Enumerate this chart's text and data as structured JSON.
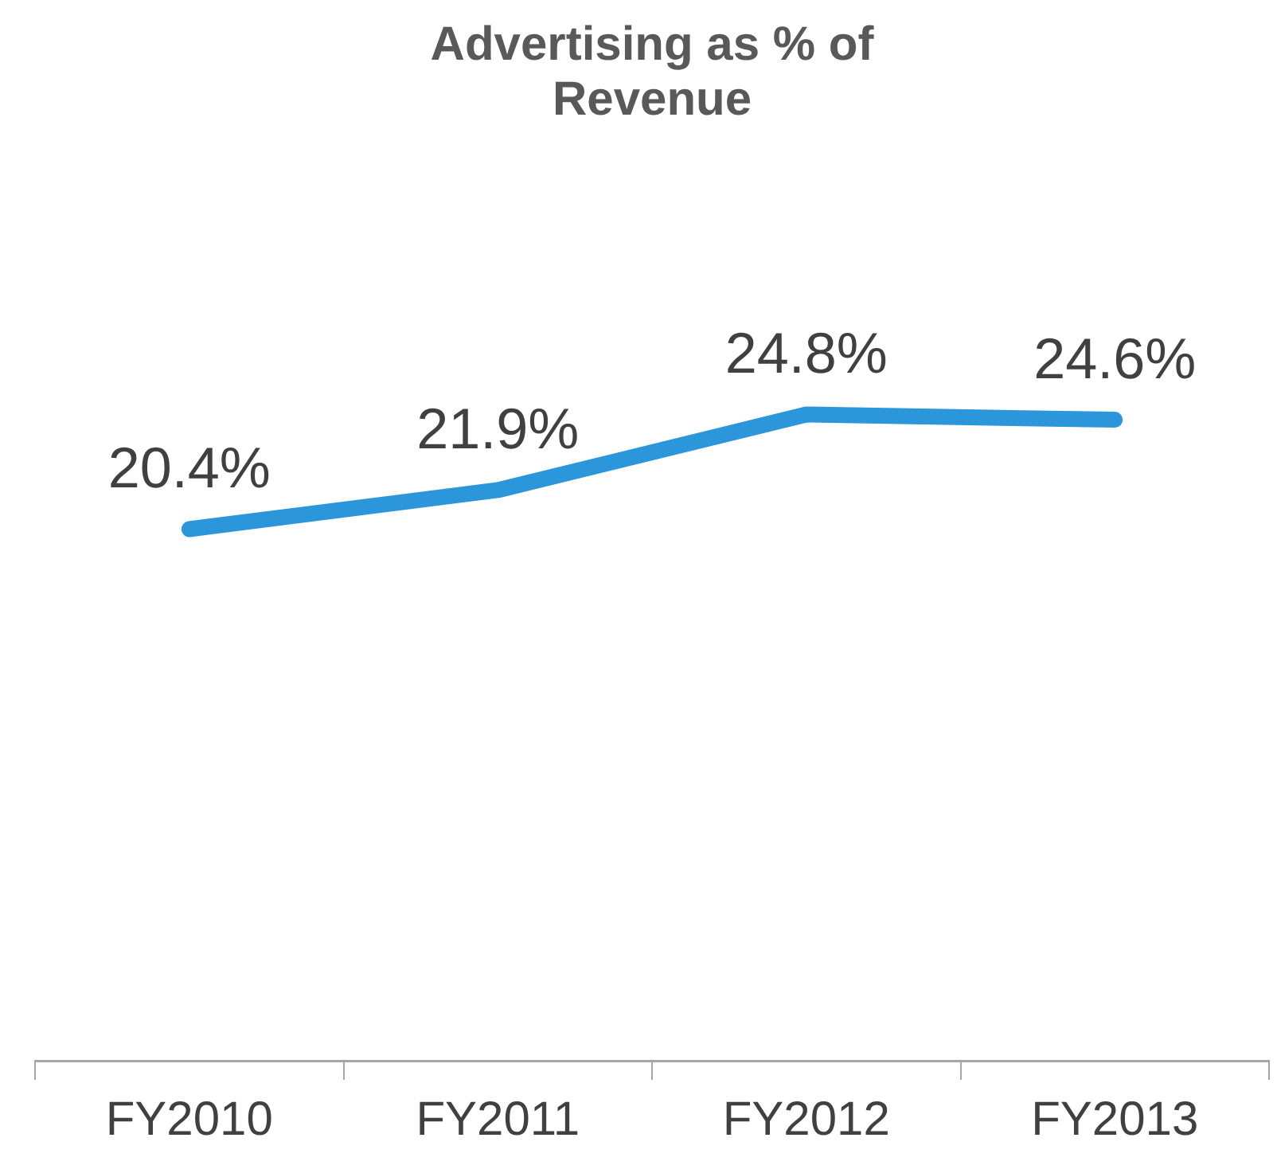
{
  "chart_data": {
    "type": "line",
    "title": "Advertising as % of Revenue",
    "categories": [
      "FY2010",
      "FY2011",
      "FY2012",
      "FY2013"
    ],
    "series": [
      {
        "color": "#2b96d9",
        "values": [
          20.4,
          21.9,
          24.8,
          24.6
        ],
        "value_labels": [
          "20.4%",
          "21.9%",
          "24.8%",
          "24.6%"
        ]
      }
    ],
    "tick_labels": "x",
    "grid": false,
    "legend": false,
    "marker": "none",
    "line_style": "solid"
  }
}
